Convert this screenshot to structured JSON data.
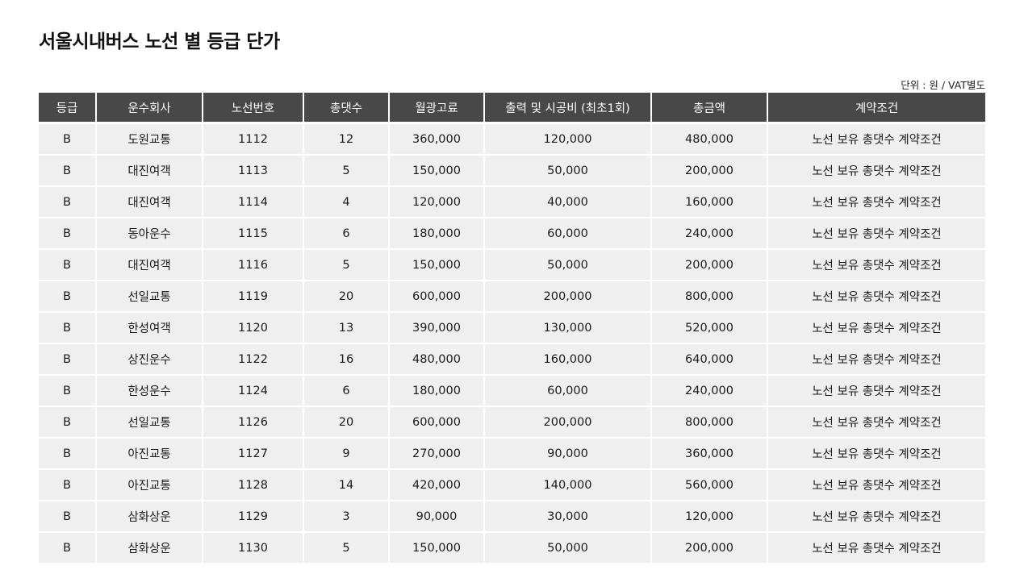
{
  "title": "서울시내버스 노선 별 등급 단가",
  "unit_note": "단위 : 원 / VAT별도",
  "table": {
    "headers": [
      "등급",
      "운수회사",
      "노선번호",
      "총댓수",
      "월광고료",
      "출력 및 시공비 (최초1회)",
      "총금액",
      "계약조건"
    ],
    "rows": [
      [
        "B",
        "도원교통",
        "1112",
        "12",
        "360,000",
        "120,000",
        "480,000",
        "노선 보유 총댓수 계약조건"
      ],
      [
        "B",
        "대진여객",
        "1113",
        "5",
        "150,000",
        "50,000",
        "200,000",
        "노선 보유 총댓수 계약조건"
      ],
      [
        "B",
        "대진여객",
        "1114",
        "4",
        "120,000",
        "40,000",
        "160,000",
        "노선 보유 총댓수 계약조건"
      ],
      [
        "B",
        "동아운수",
        "1115",
        "6",
        "180,000",
        "60,000",
        "240,000",
        "노선 보유 총댓수 계약조건"
      ],
      [
        "B",
        "대진여객",
        "1116",
        "5",
        "150,000",
        "50,000",
        "200,000",
        "노선 보유 총댓수 계약조건"
      ],
      [
        "B",
        "선일교통",
        "1119",
        "20",
        "600,000",
        "200,000",
        "800,000",
        "노선 보유 총댓수 계약조건"
      ],
      [
        "B",
        "한성여객",
        "1120",
        "13",
        "390,000",
        "130,000",
        "520,000",
        "노선 보유 총댓수 계약조건"
      ],
      [
        "B",
        "상진운수",
        "1122",
        "16",
        "480,000",
        "160,000",
        "640,000",
        "노선 보유 총댓수 계약조건"
      ],
      [
        "B",
        "한성운수",
        "1124",
        "6",
        "180,000",
        "60,000",
        "240,000",
        "노선 보유 총댓수 계약조건"
      ],
      [
        "B",
        "선일교통",
        "1126",
        "20",
        "600,000",
        "200,000",
        "800,000",
        "노선 보유 총댓수 계약조건"
      ],
      [
        "B",
        "아진교통",
        "1127",
        "9",
        "270,000",
        "90,000",
        "360,000",
        "노선 보유 총댓수 계약조건"
      ],
      [
        "B",
        "아진교통",
        "1128",
        "14",
        "420,000",
        "140,000",
        "560,000",
        "노선 보유 총댓수 계약조건"
      ],
      [
        "B",
        "삼화상운",
        "1129",
        "3",
        "90,000",
        "30,000",
        "120,000",
        "노선 보유 총댓수 계약조건"
      ],
      [
        "B",
        "삼화상운",
        "1130",
        "5",
        "150,000",
        "50,000",
        "200,000",
        "노선 보유 총댓수 계약조건"
      ]
    ]
  }
}
